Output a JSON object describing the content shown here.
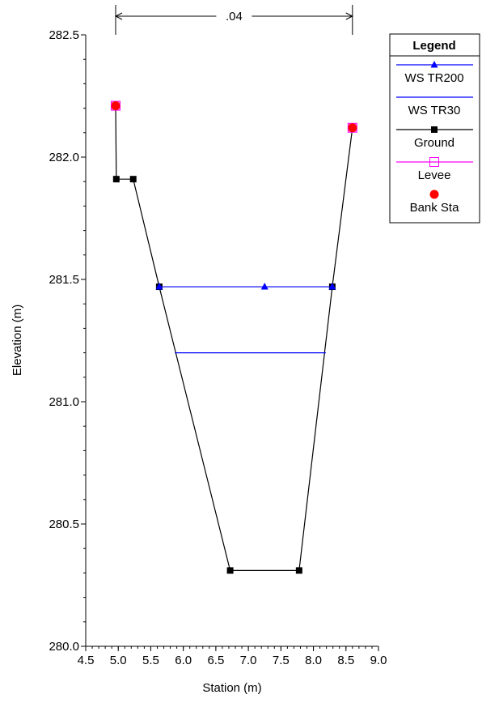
{
  "chart_data": {
    "type": "line",
    "xlabel": "Station (m)",
    "ylabel": "Elevation (m)",
    "xlim": [
      4.5,
      9.0
    ],
    "ylim": [
      280.0,
      282.5
    ],
    "xticks": [
      "4.5",
      "5.0",
      "5.5",
      "6.0",
      "6.5",
      "7.0",
      "7.5",
      "8.0",
      "8.5",
      "9.0"
    ],
    "yticks": [
      "280.0",
      "280.5",
      "281.0",
      "281.5",
      "282.0",
      "282.5"
    ],
    "grid": false,
    "manning_label": ".04",
    "manning_range": [
      4.96,
      8.6
    ],
    "legend": {
      "title": "Legend",
      "placement": "top-right",
      "entries": [
        "WS TR200",
        "WS TR30",
        "Ground",
        "Levee",
        "Bank Sta"
      ]
    },
    "series": [
      {
        "name": "WS TR200",
        "color": "#0000ff",
        "marker": "triangle",
        "x": [
          5.63,
          7.25,
          8.29
        ],
        "y": [
          281.47,
          281.47,
          281.47
        ]
      },
      {
        "name": "WS TR30",
        "color": "#0000ff",
        "marker": "none",
        "x": [
          5.87,
          8.19
        ],
        "y": [
          281.2,
          281.2
        ]
      },
      {
        "name": "Ground",
        "color": "#000000",
        "marker": "square",
        "x": [
          4.96,
          4.97,
          5.23,
          5.63,
          6.72,
          7.78,
          8.29,
          8.6
        ],
        "y": [
          282.21,
          281.91,
          281.91,
          281.47,
          280.31,
          280.31,
          281.47,
          282.12
        ]
      },
      {
        "name": "Levee",
        "color": "#ff00ff",
        "marker": "open-square",
        "x": [
          4.96,
          8.6
        ],
        "y": [
          282.21,
          282.12
        ]
      },
      {
        "name": "Bank Sta",
        "color": "#ff0000",
        "marker": "circle",
        "x": [
          4.96,
          8.6
        ],
        "y": [
          282.21,
          282.12
        ]
      }
    ]
  }
}
